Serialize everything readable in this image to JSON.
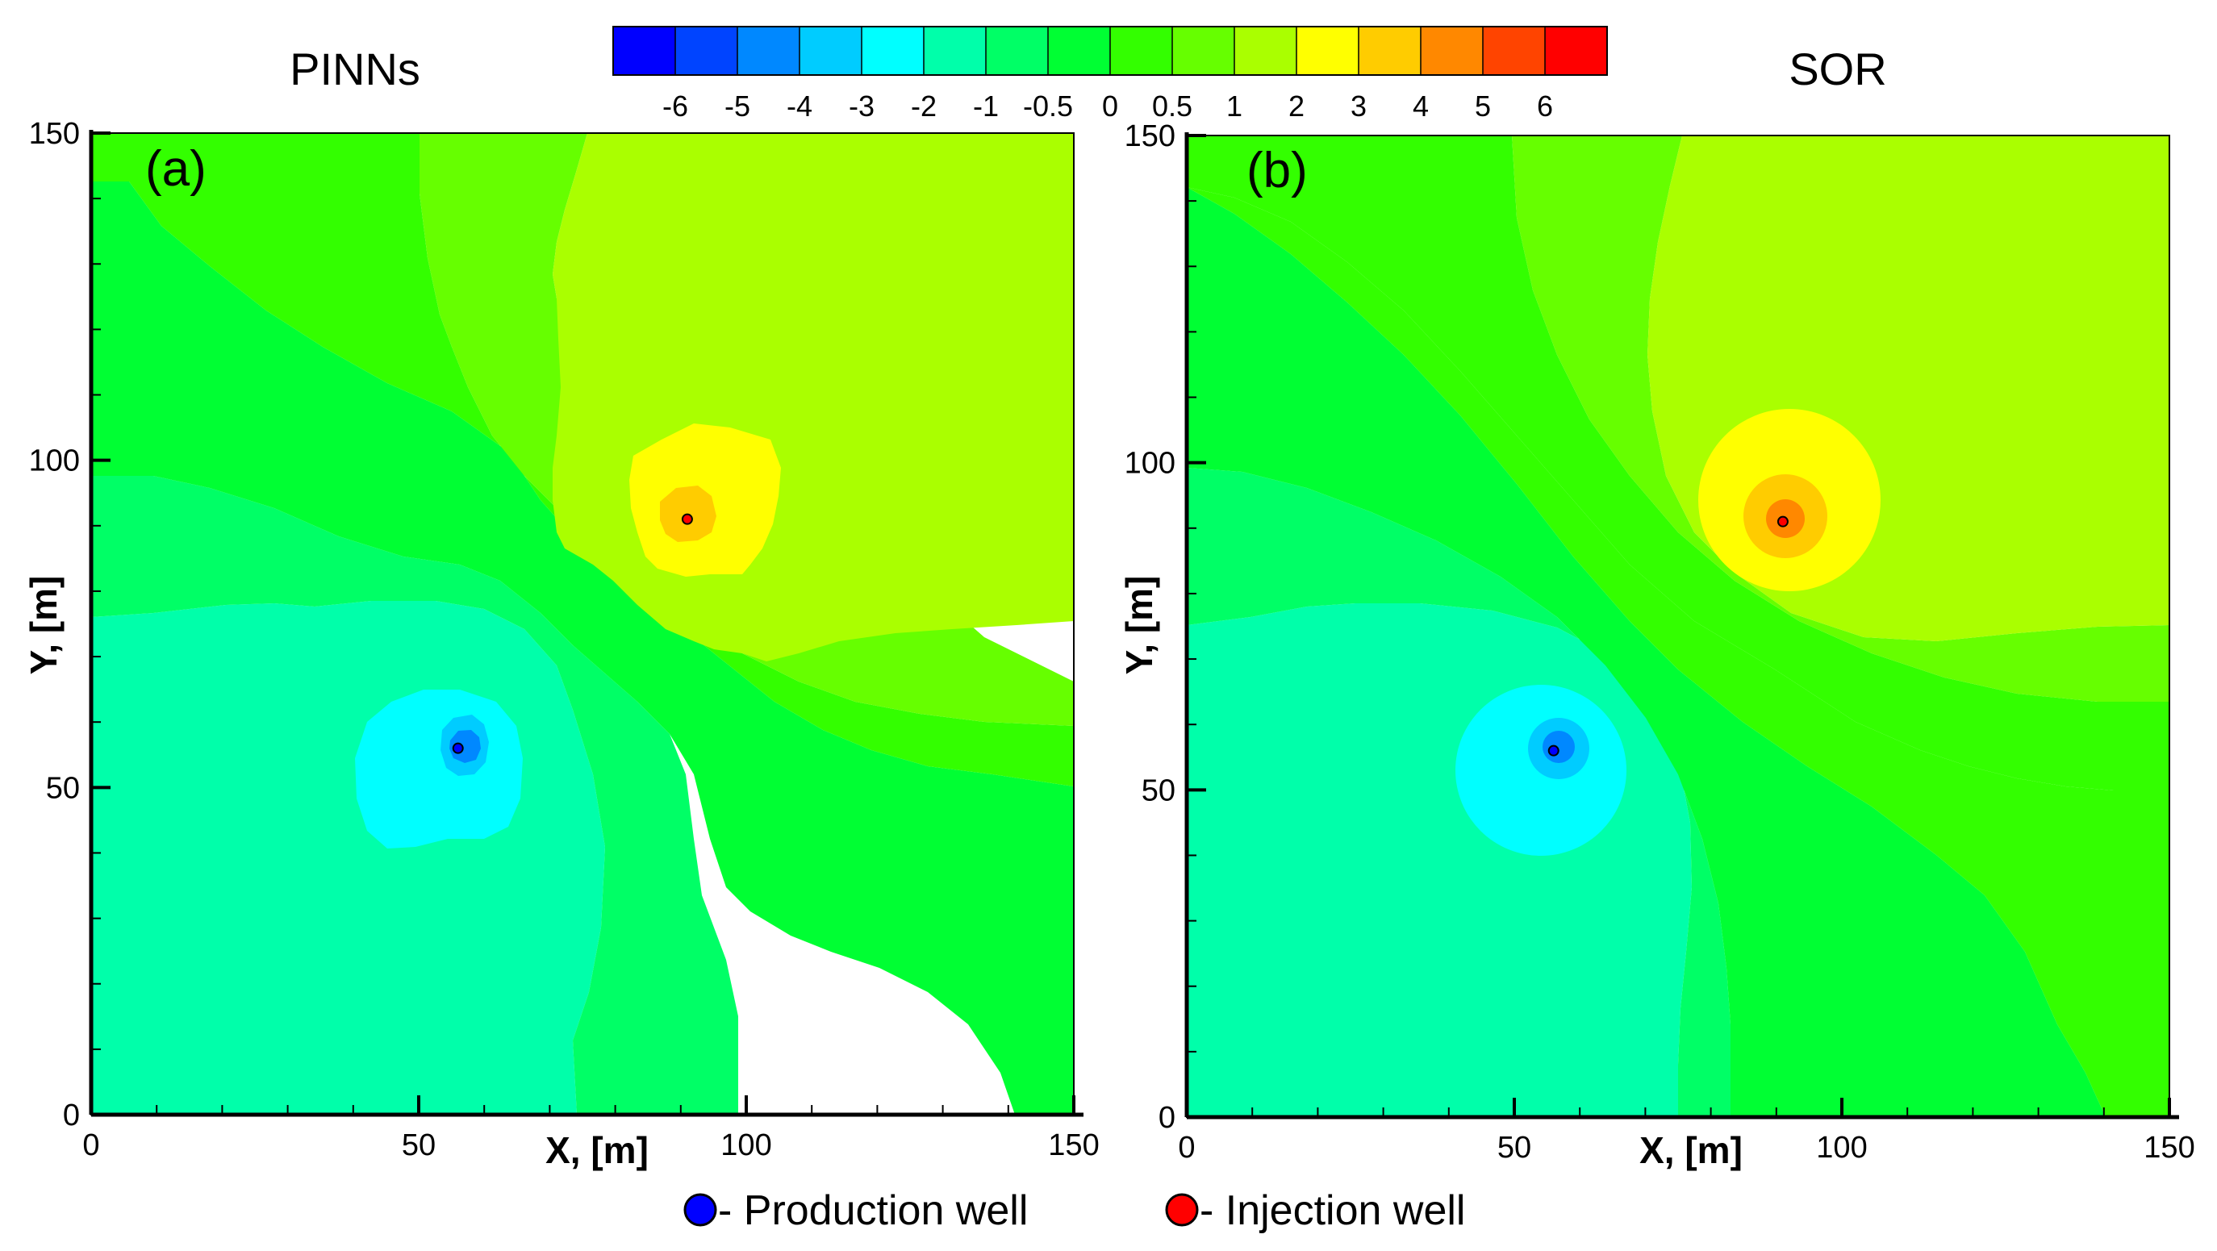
{
  "chart_data": [
    {
      "type": "heatmap",
      "title": "PINNs",
      "panel_label": "(a)",
      "xlabel": "X, [m]",
      "ylabel": "Y, [m]",
      "xlim": [
        0,
        150
      ],
      "ylim": [
        0,
        150
      ],
      "xticks": [
        "0",
        "50",
        "100",
        "150"
      ],
      "yticks": [
        "0",
        "50",
        "100",
        "150"
      ],
      "grid": false,
      "wells": [
        {
          "name": "Production well",
          "x": 56,
          "y": 56
        },
        {
          "name": "Injection well",
          "x": 91,
          "y": 91
        }
      ],
      "contour_values": [
        -6,
        -5,
        -4,
        -3,
        -2,
        -1,
        -0.5,
        0,
        0.5,
        1,
        2,
        3,
        4,
        5,
        6
      ]
    },
    {
      "type": "heatmap",
      "title": "SOR",
      "panel_label": "(b)",
      "xlabel": "X, [m]",
      "ylabel": "Y, [m]",
      "xlim": [
        0,
        150
      ],
      "ylim": [
        0,
        150
      ],
      "xticks": [
        "0",
        "50",
        "100",
        "150"
      ],
      "yticks": [
        "0",
        "50",
        "100",
        "150"
      ],
      "grid": false,
      "wells": [
        {
          "name": "Production well",
          "x": 56,
          "y": 56
        },
        {
          "name": "Injection well",
          "x": 91,
          "y": 91
        }
      ],
      "contour_values": [
        -6,
        -5,
        -4,
        -3,
        -2,
        -1,
        -0.5,
        0,
        0.5,
        1,
        2,
        3,
        4,
        5,
        6
      ]
    }
  ],
  "colorbar": {
    "tick_labels": [
      "-6",
      "-5",
      "-4",
      "-3",
      "-2",
      "-1",
      "-0.5",
      "0",
      "0.5",
      "1",
      "2",
      "3",
      "4",
      "5",
      "6"
    ],
    "colors": [
      "#0000ff",
      "#0044ff",
      "#0088ff",
      "#00ccff",
      "#00ffff",
      "#00ffaa",
      "#00ff66",
      "#00ff33",
      "#33ff00",
      "#66ff00",
      "#aaff00",
      "#ffff00",
      "#ffcc00",
      "#ff8800",
      "#ff4400",
      "#ff0000"
    ]
  },
  "legend": [
    {
      "label": "- Production well",
      "color": "#0000ff"
    },
    {
      "label": "- Injection well",
      "color": "#ff0000"
    }
  ]
}
